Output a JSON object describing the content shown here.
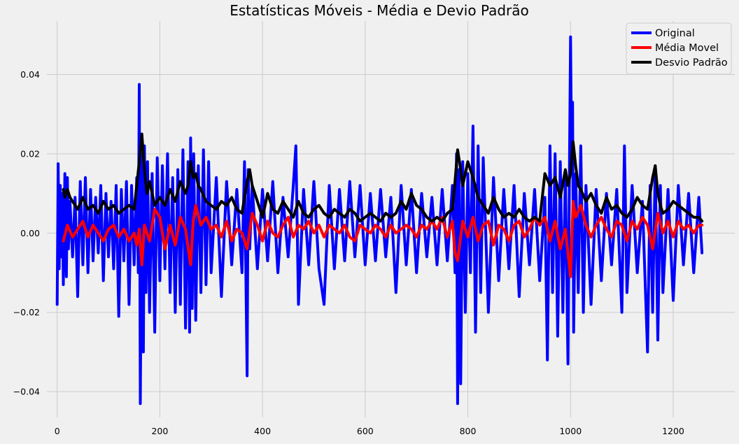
{
  "chart_data": {
    "type": "line",
    "title": "Estatísticas Móveis - Média e Devio Padrão",
    "xlabel": "",
    "ylabel": "",
    "xlim": [
      -20,
      1320
    ],
    "ylim": [
      -0.0465,
      0.0535
    ],
    "xticks": [
      0,
      200,
      400,
      600,
      800,
      1000,
      1200
    ],
    "xtick_labels": [
      "0",
      "200",
      "400",
      "600",
      "800",
      "1000",
      "1200"
    ],
    "yticks": [
      -0.04,
      -0.02,
      0.0,
      0.02,
      0.04
    ],
    "ytick_labels": [
      "−0.04",
      "−0.02",
      "0.00",
      "0.02",
      "0.04"
    ],
    "grid": true,
    "background": "#f0f0f0",
    "legend_position": "top-right",
    "series": [
      {
        "name": "Original",
        "color": "#0000ff",
        "x": [
          0,
          2,
          4,
          6,
          8,
          10,
          12,
          15,
          18,
          20,
          22,
          25,
          30,
          35,
          40,
          45,
          50,
          55,
          60,
          65,
          70,
          75,
          80,
          85,
          90,
          95,
          100,
          105,
          110,
          115,
          120,
          125,
          130,
          135,
          140,
          145,
          150,
          155,
          158,
          160,
          162,
          165,
          168,
          170,
          173,
          176,
          180,
          185,
          190,
          195,
          200,
          205,
          210,
          215,
          220,
          225,
          230,
          235,
          240,
          245,
          250,
          255,
          258,
          260,
          263,
          266,
          270,
          275,
          280,
          285,
          290,
          295,
          300,
          310,
          320,
          330,
          340,
          350,
          360,
          365,
          370,
          372,
          375,
          380,
          390,
          400,
          410,
          420,
          430,
          440,
          450,
          460,
          465,
          470,
          480,
          490,
          500,
          510,
          520,
          530,
          540,
          550,
          560,
          570,
          580,
          590,
          600,
          610,
          620,
          630,
          640,
          650,
          660,
          670,
          680,
          690,
          700,
          710,
          720,
          730,
          740,
          750,
          760,
          770,
          775,
          778,
          780,
          783,
          786,
          790,
          795,
          800,
          805,
          810,
          815,
          820,
          825,
          830,
          840,
          850,
          860,
          870,
          880,
          890,
          900,
          910,
          920,
          930,
          940,
          950,
          955,
          960,
          965,
          970,
          975,
          980,
          985,
          990,
          995,
          998,
          1000,
          1002,
          1004,
          1006,
          1010,
          1015,
          1020,
          1025,
          1030,
          1040,
          1050,
          1060,
          1070,
          1080,
          1090,
          1100,
          1105,
          1110,
          1120,
          1130,
          1140,
          1150,
          1155,
          1160,
          1165,
          1170,
          1175,
          1180,
          1190,
          1200,
          1210,
          1220,
          1230,
          1240,
          1250,
          1256
        ],
        "y": [
          -0.018,
          0.0175,
          -0.009,
          0.012,
          -0.006,
          0.01,
          -0.013,
          0.015,
          -0.011,
          0.014,
          -0.004,
          0.008,
          -0.006,
          0.009,
          -0.016,
          0.013,
          -0.008,
          0.014,
          -0.01,
          0.011,
          -0.007,
          0.009,
          -0.005,
          0.012,
          -0.012,
          0.01,
          -0.006,
          0.008,
          -0.009,
          0.012,
          -0.021,
          0.011,
          -0.007,
          0.013,
          -0.018,
          0.012,
          -0.008,
          0.014,
          -0.01,
          0.0375,
          -0.043,
          0.02,
          -0.03,
          0.022,
          -0.015,
          0.018,
          -0.02,
          0.015,
          -0.025,
          0.019,
          -0.012,
          0.017,
          -0.009,
          0.02,
          -0.015,
          0.014,
          -0.02,
          0.016,
          -0.018,
          0.021,
          -0.024,
          0.018,
          -0.025,
          0.024,
          -0.019,
          0.02,
          -0.022,
          0.017,
          -0.015,
          0.021,
          -0.013,
          0.018,
          -0.01,
          0.014,
          -0.016,
          0.013,
          -0.008,
          0.011,
          -0.01,
          0.018,
          -0.036,
          0.016,
          -0.004,
          0.012,
          -0.009,
          0.011,
          -0.007,
          0.013,
          -0.01,
          0.009,
          -0.006,
          0.012,
          0.022,
          -0.018,
          0.011,
          -0.008,
          0.013,
          -0.009,
          -0.018,
          0.012,
          -0.009,
          0.011,
          -0.007,
          0.013,
          -0.006,
          0.012,
          -0.008,
          0.01,
          -0.007,
          0.011,
          -0.006,
          0.009,
          -0.015,
          0.012,
          -0.008,
          0.011,
          -0.01,
          0.01,
          -0.006,
          0.009,
          -0.008,
          0.011,
          -0.007,
          0.012,
          -0.01,
          0.02,
          -0.043,
          0.016,
          -0.038,
          0.018,
          -0.02,
          0.015,
          -0.01,
          0.027,
          -0.025,
          0.022,
          -0.015,
          0.019,
          -0.02,
          0.014,
          -0.012,
          0.011,
          -0.009,
          0.012,
          -0.016,
          0.01,
          -0.008,
          0.011,
          -0.012,
          0.009,
          -0.032,
          0.022,
          -0.015,
          0.02,
          -0.026,
          0.018,
          -0.02,
          0.015,
          -0.033,
          0.018,
          0.0495,
          0.02,
          0.033,
          -0.025,
          0.015,
          -0.015,
          0.022,
          -0.02,
          0.012,
          -0.018,
          0.011,
          -0.012,
          0.01,
          -0.008,
          0.011,
          -0.02,
          0.022,
          -0.015,
          0.012,
          -0.01,
          0.008,
          -0.03,
          0.012,
          -0.02,
          0.017,
          -0.027,
          0.012,
          -0.015,
          0.011,
          -0.017,
          0.012,
          -0.008,
          0.01,
          -0.01,
          0.009,
          -0.005
        ]
      },
      {
        "name": "Média Movel",
        "color": "#ff0000",
        "x": [
          12,
          20,
          30,
          40,
          50,
          60,
          70,
          80,
          90,
          100,
          110,
          120,
          130,
          140,
          150,
          155,
          160,
          165,
          170,
          180,
          190,
          200,
          210,
          220,
          230,
          240,
          250,
          260,
          265,
          270,
          280,
          290,
          300,
          310,
          320,
          330,
          340,
          350,
          360,
          370,
          380,
          390,
          400,
          410,
          420,
          430,
          440,
          450,
          460,
          470,
          480,
          490,
          500,
          510,
          520,
          530,
          540,
          550,
          560,
          570,
          580,
          590,
          600,
          610,
          620,
          630,
          640,
          650,
          660,
          670,
          680,
          690,
          700,
          710,
          720,
          730,
          740,
          750,
          760,
          770,
          775,
          780,
          790,
          800,
          810,
          820,
          830,
          840,
          850,
          860,
          870,
          880,
          890,
          900,
          910,
          920,
          930,
          940,
          950,
          960,
          970,
          980,
          990,
          1000,
          1005,
          1010,
          1020,
          1030,
          1040,
          1050,
          1060,
          1070,
          1080,
          1090,
          1100,
          1110,
          1120,
          1130,
          1140,
          1150,
          1160,
          1170,
          1180,
          1190,
          1200,
          1210,
          1220,
          1230,
          1240,
          1250,
          1256
        ],
        "y": [
          -0.002,
          0.002,
          -0.001,
          0.001,
          0.003,
          -0.001,
          0.002,
          0.0,
          -0.002,
          0.001,
          0.002,
          -0.001,
          0.001,
          -0.002,
          0.0,
          -0.003,
          0.001,
          -0.008,
          0.002,
          -0.002,
          0.006,
          0.004,
          -0.004,
          0.002,
          -0.003,
          0.004,
          0.001,
          -0.008,
          0.003,
          0.007,
          0.002,
          0.004,
          0.001,
          0.002,
          -0.001,
          0.003,
          -0.002,
          0.001,
          0.0,
          -0.004,
          0.005,
          0.002,
          -0.002,
          0.003,
          0.0,
          -0.001,
          0.002,
          0.004,
          -0.001,
          0.002,
          0.001,
          0.003,
          0.0,
          0.002,
          -0.001,
          0.002,
          0.001,
          0.0,
          0.002,
          -0.001,
          -0.002,
          0.002,
          0.001,
          0.0,
          0.002,
          0.001,
          -0.001,
          0.002,
          0.0,
          0.001,
          0.002,
          0.001,
          -0.001,
          0.002,
          0.001,
          0.003,
          0.001,
          0.004,
          -0.001,
          0.003,
          -0.005,
          -0.007,
          0.003,
          -0.001,
          0.004,
          -0.002,
          0.002,
          0.003,
          -0.003,
          0.002,
          0.001,
          -0.002,
          0.002,
          0.003,
          -0.001,
          0.001,
          0.004,
          0.002,
          0.004,
          -0.002,
          0.003,
          -0.004,
          0.001,
          -0.011,
          0.008,
          0.004,
          0.007,
          0.002,
          -0.001,
          0.002,
          0.004,
          0.001,
          -0.001,
          0.003,
          0.002,
          -0.002,
          0.003,
          0.001,
          0.004,
          0.002,
          -0.004,
          0.005,
          0.0,
          0.003,
          -0.001,
          0.003,
          0.001,
          0.002,
          0.0,
          0.002,
          0.002
        ]
      },
      {
        "name": "Desvio Padrão",
        "color": "#000000",
        "x": [
          12,
          15,
          20,
          25,
          30,
          40,
          50,
          60,
          70,
          80,
          90,
          100,
          110,
          120,
          130,
          140,
          150,
          155,
          160,
          165,
          170,
          175,
          180,
          190,
          200,
          210,
          220,
          230,
          240,
          250,
          255,
          260,
          265,
          270,
          275,
          280,
          290,
          300,
          310,
          320,
          330,
          340,
          350,
          360,
          370,
          375,
          380,
          385,
          390,
          400,
          410,
          420,
          430,
          440,
          450,
          460,
          470,
          480,
          490,
          500,
          510,
          520,
          530,
          540,
          550,
          560,
          570,
          580,
          590,
          600,
          610,
          620,
          630,
          640,
          650,
          660,
          670,
          680,
          690,
          700,
          710,
          720,
          730,
          740,
          750,
          760,
          770,
          775,
          780,
          785,
          790,
          800,
          810,
          820,
          830,
          840,
          850,
          860,
          870,
          880,
          890,
          900,
          910,
          920,
          930,
          940,
          950,
          960,
          970,
          980,
          990,
          995,
          1000,
          1005,
          1010,
          1015,
          1020,
          1030,
          1040,
          1050,
          1060,
          1070,
          1080,
          1090,
          1100,
          1110,
          1120,
          1130,
          1140,
          1150,
          1155,
          1160,
          1165,
          1170,
          1175,
          1180,
          1190,
          1200,
          1210,
          1220,
          1230,
          1240,
          1250,
          1256
        ],
        "y": [
          0.011,
          0.009,
          0.011,
          0.009,
          0.008,
          0.006,
          0.009,
          0.006,
          0.007,
          0.005,
          0.008,
          0.006,
          0.007,
          0.005,
          0.006,
          0.007,
          0.006,
          0.012,
          0.018,
          0.025,
          0.016,
          0.01,
          0.013,
          0.007,
          0.009,
          0.007,
          0.011,
          0.008,
          0.013,
          0.01,
          0.012,
          0.018,
          0.014,
          0.015,
          0.012,
          0.011,
          0.008,
          0.007,
          0.006,
          0.008,
          0.007,
          0.009,
          0.006,
          0.005,
          0.013,
          0.016,
          0.012,
          0.01,
          0.008,
          0.004,
          0.01,
          0.006,
          0.005,
          0.008,
          0.006,
          0.004,
          0.008,
          0.005,
          0.004,
          0.006,
          0.007,
          0.005,
          0.004,
          0.006,
          0.005,
          0.004,
          0.006,
          0.005,
          0.003,
          0.004,
          0.005,
          0.004,
          0.003,
          0.005,
          0.004,
          0.005,
          0.008,
          0.006,
          0.01,
          0.007,
          0.006,
          0.004,
          0.003,
          0.004,
          0.003,
          0.005,
          0.006,
          0.013,
          0.021,
          0.017,
          0.012,
          0.018,
          0.014,
          0.009,
          0.007,
          0.005,
          0.009,
          0.006,
          0.004,
          0.005,
          0.004,
          0.006,
          0.004,
          0.003,
          0.004,
          0.003,
          0.015,
          0.012,
          0.014,
          0.009,
          0.016,
          0.012,
          0.015,
          0.023,
          0.017,
          0.012,
          0.011,
          0.008,
          0.01,
          0.007,
          0.005,
          0.009,
          0.006,
          0.007,
          0.005,
          0.004,
          0.006,
          0.009,
          0.007,
          0.006,
          0.01,
          0.014,
          0.017,
          0.01,
          0.007,
          0.005,
          0.006,
          0.008,
          0.007,
          0.006,
          0.005,
          0.004,
          0.004,
          0.003
        ]
      }
    ]
  }
}
